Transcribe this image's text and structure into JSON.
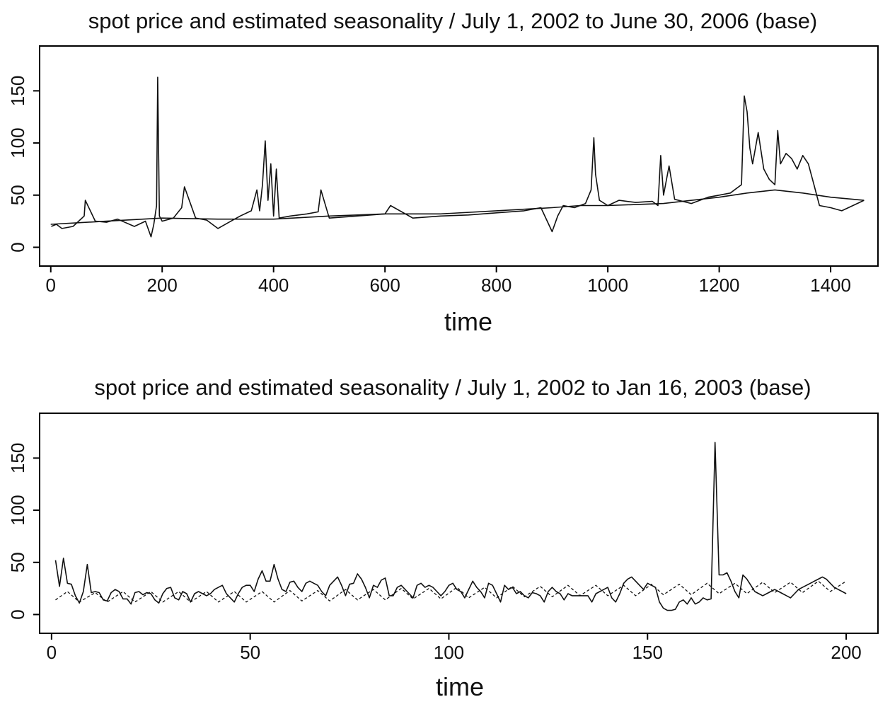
{
  "chart_data": [
    {
      "type": "line",
      "title": "spot price and estimated seasonality / July 1, 2002 to June 30, 2006 (base)",
      "xlabel": "time",
      "ylabel": "",
      "xlim": [
        -20,
        1485
      ],
      "ylim": [
        -18,
        193
      ],
      "xticks": [
        0,
        200,
        400,
        600,
        800,
        1000,
        1200,
        1400
      ],
      "xtick_labels": [
        "0",
        "200",
        "400",
        "600",
        "800",
        "1000",
        "1200",
        "1400"
      ],
      "yticks": [
        0,
        50,
        100,
        150
      ],
      "ytick_labels": [
        "0",
        "50",
        "100",
        "150"
      ],
      "grid": false,
      "legend": "none",
      "series": [
        {
          "line_style": "solid",
          "x": [
            1,
            10,
            20,
            40,
            60,
            62,
            80,
            100,
            120,
            150,
            170,
            180,
            185,
            190,
            192,
            195,
            200,
            220,
            235,
            240,
            260,
            280,
            300,
            320,
            340,
            360,
            370,
            375,
            380,
            385,
            390,
            395,
            400,
            405,
            410,
            430,
            460,
            480,
            485,
            500,
            550,
            600,
            610,
            650,
            700,
            750,
            800,
            850,
            880,
            900,
            910,
            920,
            940,
            960,
            970,
            975,
            978,
            985,
            1000,
            1020,
            1050,
            1080,
            1090,
            1095,
            1100,
            1110,
            1120,
            1150,
            1180,
            1200,
            1220,
            1240,
            1245,
            1250,
            1255,
            1260,
            1270,
            1280,
            1290,
            1300,
            1305,
            1310,
            1320,
            1330,
            1340,
            1350,
            1360,
            1370,
            1380,
            1400,
            1420,
            1440,
            1460
          ],
          "y": [
            20,
            22,
            18,
            20,
            30,
            45,
            25,
            24,
            27,
            20,
            25,
            10,
            22,
            40,
            163,
            30,
            25,
            28,
            38,
            58,
            28,
            26,
            18,
            24,
            30,
            35,
            55,
            35,
            60,
            102,
            45,
            80,
            30,
            75,
            28,
            30,
            32,
            34,
            55,
            28,
            30,
            32,
            40,
            28,
            30,
            31,
            33,
            35,
            38,
            15,
            30,
            40,
            38,
            42,
            55,
            105,
            70,
            45,
            40,
            45,
            43,
            44,
            40,
            88,
            50,
            78,
            46,
            42,
            48,
            50,
            52,
            60,
            145,
            130,
            95,
            80,
            110,
            75,
            65,
            60,
            112,
            80,
            90,
            85,
            75,
            88,
            80,
            60,
            40,
            38,
            35,
            40,
            45
          ]
        },
        {
          "line_style": "solid",
          "x": [
            0,
            100,
            200,
            300,
            400,
            500,
            600,
            700,
            800,
            900,
            950,
            1000,
            1100,
            1200,
            1250,
            1300,
            1350,
            1400,
            1460
          ],
          "y": [
            22,
            25,
            28,
            27,
            27,
            30,
            32,
            32,
            35,
            38,
            40,
            40,
            42,
            48,
            52,
            55,
            52,
            48,
            45
          ]
        }
      ]
    },
    {
      "type": "line",
      "title": "spot price and estimated seasonality / July 1, 2002 to Jan 16, 2003 (base)",
      "xlabel": "time",
      "ylabel": "",
      "xlim": [
        -3,
        208
      ],
      "ylim": [
        -18,
        193
      ],
      "xticks": [
        0,
        50,
        100,
        150,
        200
      ],
      "xtick_labels": [
        "0",
        "50",
        "100",
        "150",
        "200"
      ],
      "yticks": [
        0,
        50,
        100,
        150
      ],
      "ytick_labels": [
        "0",
        "50",
        "100",
        "150"
      ],
      "grid": false,
      "legend": "none",
      "series": [
        {
          "line_style": "solid",
          "x": [
            1,
            2,
            3,
            4,
            5,
            6,
            7,
            8,
            9,
            10,
            11,
            12,
            13,
            14,
            15,
            16,
            17,
            18,
            19,
            20,
            21,
            22,
            23,
            24,
            25,
            26,
            27,
            28,
            29,
            30,
            31,
            32,
            33,
            34,
            35,
            36,
            37,
            38,
            39,
            40,
            41,
            42,
            43,
            44,
            45,
            46,
            47,
            48,
            49,
            50,
            51,
            52,
            53,
            54,
            55,
            56,
            57,
            58,
            59,
            60,
            61,
            62,
            63,
            64,
            65,
            66,
            67,
            68,
            69,
            70,
            71,
            72,
            73,
            74,
            75,
            76,
            77,
            78,
            79,
            80,
            81,
            82,
            83,
            84,
            85,
            86,
            87,
            88,
            89,
            90,
            91,
            92,
            93,
            94,
            95,
            96,
            97,
            98,
            99,
            100,
            101,
            102,
            103,
            104,
            105,
            106,
            107,
            108,
            109,
            110,
            111,
            112,
            113,
            114,
            115,
            116,
            117,
            118,
            119,
            120,
            121,
            122,
            123,
            124,
            125,
            126,
            127,
            128,
            129,
            130,
            131,
            132,
            133,
            134,
            135,
            136,
            137,
            138,
            139,
            140,
            141,
            142,
            143,
            144,
            145,
            146,
            147,
            148,
            149,
            150,
            151,
            152,
            153,
            154,
            155,
            156,
            157,
            158,
            159,
            160,
            161,
            162,
            163,
            164,
            165,
            166,
            167,
            168,
            169,
            170,
            171,
            172,
            173,
            174,
            175,
            176,
            177,
            178,
            179,
            180,
            181,
            182,
            183,
            184,
            185,
            186,
            187,
            188,
            189,
            190,
            191,
            192,
            193,
            194,
            195,
            196,
            197,
            198,
            199,
            200
          ],
          "y": [
            52,
            27,
            54,
            30,
            29,
            18,
            11,
            22,
            48,
            21,
            22,
            21,
            14,
            13,
            21,
            24,
            22,
            15,
            15,
            10,
            21,
            22,
            19,
            21,
            20,
            14,
            11,
            20,
            25,
            26,
            16,
            14,
            22,
            20,
            12,
            20,
            22,
            20,
            18,
            20,
            24,
            26,
            28,
            20,
            16,
            12,
            20,
            26,
            28,
            28,
            22,
            34,
            42,
            32,
            32,
            48,
            34,
            24,
            22,
            31,
            32,
            26,
            22,
            30,
            32,
            30,
            28,
            22,
            18,
            28,
            32,
            36,
            28,
            18,
            29,
            30,
            39,
            34,
            26,
            16,
            28,
            26,
            33,
            35,
            18,
            18,
            26,
            28,
            24,
            20,
            16,
            28,
            30,
            26,
            28,
            26,
            22,
            18,
            22,
            28,
            30,
            24,
            22,
            16,
            24,
            32,
            26,
            22,
            16,
            30,
            28,
            20,
            12,
            28,
            24,
            26,
            20,
            22,
            18,
            16,
            21,
            20,
            18,
            12,
            22,
            26,
            22,
            20,
            14,
            20,
            18,
            18,
            18,
            18,
            18,
            12,
            20,
            22,
            24,
            26,
            16,
            12,
            20,
            30,
            34,
            36,
            32,
            28,
            24,
            30,
            28,
            26,
            12,
            6,
            4,
            4,
            5,
            12,
            14,
            10,
            16,
            10,
            12,
            16,
            14,
            15,
            165,
            38,
            38,
            40,
            32,
            22,
            16,
            38,
            34,
            28,
            22,
            20,
            18,
            20,
            22,
            24,
            22,
            20,
            18,
            16,
            20,
            24,
            26,
            28,
            30,
            32,
            34,
            36,
            34,
            30,
            26,
            24,
            22,
            20
          ]
        },
        {
          "line_style": "dashed",
          "x": [
            1,
            4,
            7,
            11,
            14,
            18,
            21,
            25,
            28,
            32,
            35,
            39,
            42,
            46,
            49,
            53,
            56,
            60,
            63,
            67,
            70,
            74,
            77,
            81,
            84,
            88,
            91,
            95,
            98,
            102,
            105,
            109,
            112,
            116,
            119,
            123,
            126,
            130,
            133,
            137,
            140,
            144,
            147,
            151,
            154,
            158,
            161,
            165,
            168,
            172,
            175,
            179,
            182,
            186,
            189,
            193,
            196,
            200
          ],
          "y": [
            14,
            22,
            12,
            21,
            12,
            22,
            12,
            22,
            12,
            22,
            12,
            22,
            12,
            22,
            12,
            22,
            12,
            23,
            13,
            23,
            13,
            24,
            14,
            24,
            14,
            25,
            15,
            25,
            15,
            26,
            16,
            26,
            16,
            27,
            17,
            27,
            17,
            28,
            18,
            28,
            18,
            28,
            18,
            29,
            19,
            29,
            19,
            30,
            20,
            30,
            20,
            31,
            21,
            31,
            21,
            32,
            22,
            32
          ]
        }
      ]
    }
  ]
}
